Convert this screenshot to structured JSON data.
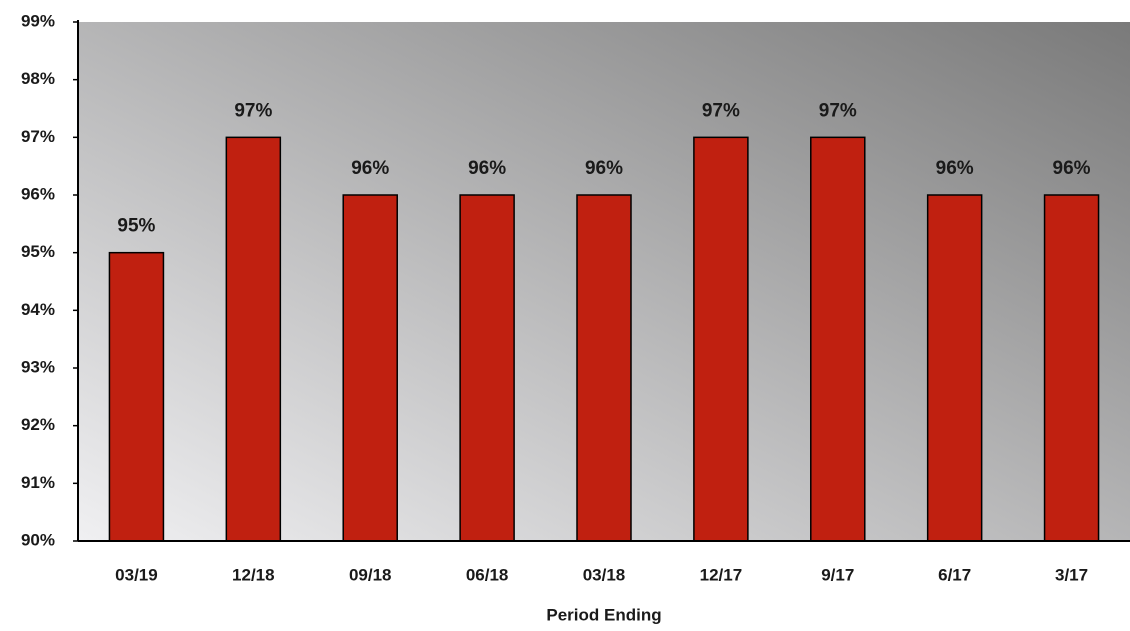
{
  "chart_data": {
    "type": "bar",
    "x_label": "Period Ending",
    "categories": [
      "03/19",
      "12/18",
      "09/18",
      "06/18",
      "03/18",
      "12/17",
      "9/17",
      "6/17",
      "3/17"
    ],
    "values": [
      95,
      97,
      96,
      96,
      96,
      97,
      97,
      96,
      96
    ],
    "value_labels": [
      "95%",
      "97%",
      "96%",
      "96%",
      "96%",
      "97%",
      "97%",
      "96%",
      "96%"
    ],
    "color": "#c02010",
    "ylim": [
      90,
      99
    ],
    "yticks": [
      {
        "value": 90,
        "label": "90%"
      },
      {
        "value": 91,
        "label": "91%"
      },
      {
        "value": 92,
        "label": "92%"
      },
      {
        "value": 93,
        "label": "93%"
      },
      {
        "value": 94,
        "label": "94%"
      },
      {
        "value": 95,
        "label": "95%"
      },
      {
        "value": 96,
        "label": "96%"
      },
      {
        "value": 97,
        "label": "97%"
      },
      {
        "value": 98,
        "label": "98%"
      },
      {
        "value": 99,
        "label": "99%"
      }
    ]
  }
}
